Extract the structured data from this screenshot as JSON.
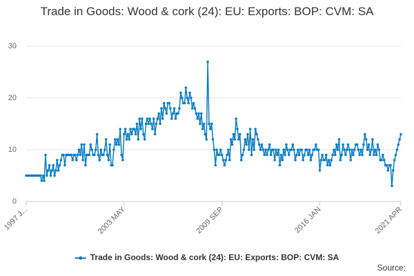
{
  "chart_data": {
    "type": "line",
    "title": "Trade in Goods: Wood & cork (24): EU: Exports: BOP: CVM: SA",
    "source": "Source:",
    "categories": [
      "1997 J...",
      null,
      null,
      null,
      null,
      null,
      null,
      null,
      null,
      null,
      null,
      null,
      null,
      null,
      null,
      null,
      null,
      null,
      null,
      null,
      null,
      null,
      null,
      null,
      null,
      null,
      null,
      null,
      null,
      null,
      null,
      null,
      null,
      null,
      null,
      null,
      null,
      null,
      null,
      null,
      null,
      null,
      null,
      null,
      null,
      null,
      null,
      null,
      null,
      null,
      null,
      null,
      null,
      null,
      null,
      null,
      null,
      null,
      null,
      null,
      null,
      null,
      null,
      null,
      null,
      null,
      null,
      null,
      null,
      null,
      null,
      null,
      null,
      null,
      null,
      null,
      "2003 MAY",
      null,
      null,
      null,
      null,
      null,
      null,
      null,
      null,
      null,
      null,
      null,
      null,
      null,
      null,
      null,
      null,
      null,
      null,
      null,
      null,
      null,
      null,
      null,
      null,
      null,
      null,
      null,
      null,
      null,
      null,
      null,
      null,
      null,
      null,
      null,
      null,
      null,
      null,
      null,
      null,
      null,
      null,
      null,
      null,
      null,
      null,
      null,
      null,
      null,
      null,
      null,
      null,
      null,
      null,
      null,
      null,
      null,
      null,
      null,
      null,
      null,
      null,
      null,
      null,
      null,
      null,
      null,
      null,
      null,
      null,
      null,
      null,
      null,
      null,
      null,
      "2009 SEP",
      null,
      null,
      null,
      null,
      null,
      null,
      null,
      null,
      null,
      null,
      null,
      null,
      null,
      null,
      null,
      null,
      null,
      null,
      null,
      null,
      null,
      null,
      null,
      null,
      null,
      null,
      null,
      null,
      null,
      null,
      null,
      null,
      null,
      null,
      null,
      null,
      null,
      null,
      null,
      null,
      null,
      null,
      null,
      null,
      null,
      null,
      null,
      null,
      null,
      null,
      null,
      null,
      null,
      null,
      null,
      null,
      null,
      null,
      null,
      null,
      null,
      null,
      null,
      null,
      null,
      null,
      null,
      null,
      null,
      null,
      null,
      null,
      null,
      null,
      null,
      "2016 JAN",
      null,
      null,
      null,
      null,
      null,
      null,
      null,
      null,
      null,
      null,
      null,
      null,
      null,
      null,
      null,
      null,
      null,
      null,
      null,
      null,
      null,
      null,
      null,
      null,
      null,
      null,
      null,
      null,
      null,
      null,
      null,
      null,
      null,
      null,
      null,
      null,
      null,
      null,
      null,
      null,
      null,
      null,
      null,
      null,
      null,
      null,
      null,
      null,
      null,
      null,
      null,
      null,
      null,
      null,
      null,
      null,
      null,
      null,
      null,
      null,
      null,
      null,
      "2021 APR"
    ],
    "series": [
      {
        "name": "Trade in Goods: Wood & cork (24): EU: Exports: BOP: CVM: SA",
        "color": "#0a7cc1",
        "values": [
          5,
          5,
          5,
          5,
          5,
          5,
          5,
          5,
          5,
          5,
          5,
          5,
          4,
          5,
          4,
          9,
          5,
          6,
          7,
          5,
          6,
          7,
          5,
          6,
          8,
          6,
          7,
          8,
          9,
          9,
          7,
          9,
          9,
          9,
          9,
          9,
          8,
          9,
          9,
          8,
          9,
          10,
          9,
          11,
          8,
          11,
          7,
          9,
          9,
          9,
          11,
          10,
          9,
          9,
          10,
          13,
          9,
          8,
          10,
          9,
          9,
          10,
          12,
          9,
          8,
          11,
          7,
          7,
          10,
          12,
          11,
          12,
          11,
          14,
          9,
          8,
          13,
          14,
          12,
          13,
          12,
          14,
          13,
          14,
          14,
          13,
          15,
          12,
          16,
          14,
          16,
          13,
          12,
          15,
          16,
          15,
          16,
          15,
          14,
          16,
          13,
          15,
          16,
          17,
          15,
          18,
          16,
          19,
          18,
          17,
          19,
          19,
          18,
          16,
          17,
          18,
          16,
          17,
          17,
          18,
          21,
          20,
          19,
          19,
          22,
          20,
          19,
          21,
          20,
          18,
          19,
          18,
          17,
          16,
          17,
          15,
          17,
          14,
          15,
          13,
          12,
          27,
          15,
          14,
          15,
          12,
          10,
          7,
          10,
          9,
          9,
          10,
          9,
          8,
          7,
          8,
          9,
          10,
          8,
          12,
          11,
          13,
          12,
          16,
          14,
          12,
          13,
          8,
          9,
          10,
          12,
          11,
          13,
          10,
          14,
          9,
          12,
          10,
          14,
          13,
          12,
          11,
          10,
          11,
          10,
          9,
          10,
          9,
          10,
          11,
          9,
          10,
          10,
          8,
          10,
          9,
          10,
          7,
          9,
          8,
          10,
          9,
          11,
          10,
          9,
          10,
          10,
          11,
          10,
          8,
          9,
          10,
          9,
          10,
          10,
          8,
          9,
          10,
          10,
          9,
          10,
          8,
          9,
          10,
          10,
          11,
          10,
          10,
          6,
          8,
          9,
          8,
          8,
          9,
          7,
          8,
          7,
          8,
          9,
          10,
          9,
          11,
          10,
          12,
          8,
          9,
          11,
          10,
          9,
          10,
          11,
          10,
          8,
          10,
          9,
          10,
          11,
          11,
          10,
          9,
          10,
          9,
          11,
          13,
          12,
          10,
          11,
          9,
          10,
          12,
          9,
          10,
          9,
          11,
          10,
          8,
          8,
          9,
          8,
          7,
          7,
          6,
          7,
          7,
          3,
          6,
          8,
          9,
          10,
          11,
          12,
          13
        ]
      }
    ],
    "ylim": [
      0,
      30
    ],
    "yticks": [
      0,
      10,
      20,
      30
    ],
    "grid": true
  }
}
